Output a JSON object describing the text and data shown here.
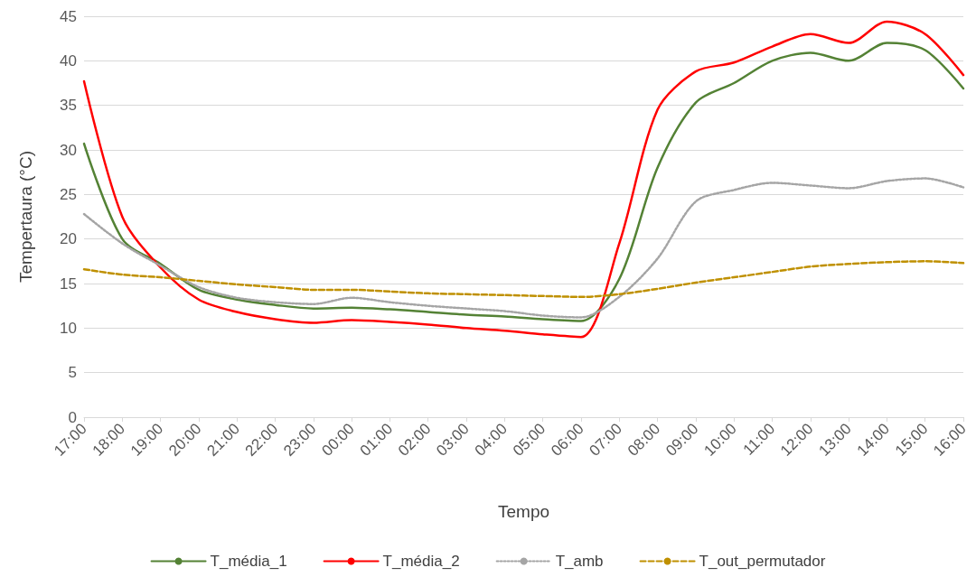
{
  "chart_data": {
    "type": "line",
    "xlabel": "Tempo",
    "ylabel": "Tempertaura (°C)",
    "categories": [
      "17:00",
      "18:00",
      "19:00",
      "20:00",
      "21:00",
      "22:00",
      "23:00",
      "00:00",
      "01:00",
      "02:00",
      "03:00",
      "04:00",
      "05:00",
      "06:00",
      "07:00",
      "08:00",
      "09:00",
      "10:00",
      "11:00",
      "12:00",
      "13:00",
      "14:00",
      "15:00",
      "16:00"
    ],
    "series": [
      {
        "name": "T_média_1",
        "color": "#548235",
        "line_style": "solid",
        "values": [
          30.7,
          20,
          17.2,
          14.3,
          13.2,
          12.6,
          12.2,
          12.3,
          12.1,
          11.8,
          11.5,
          11.3,
          11,
          10.8,
          15.5,
          28,
          35.3,
          37.5,
          40,
          40.9,
          40,
          42,
          41.2,
          36.9
        ]
      },
      {
        "name": "T_média_2",
        "color": "#ff0000",
        "line_style": "solid",
        "values": [
          37.7,
          22.5,
          16.8,
          13.2,
          11.8,
          11,
          10.6,
          10.9,
          10.7,
          10.4,
          10,
          9.7,
          9.3,
          9,
          19.5,
          34.5,
          38.8,
          39.8,
          41.6,
          43,
          42,
          44.4,
          43,
          38.4
        ]
      },
      {
        "name": "T_amb",
        "color": "#a5a5a5",
        "line_style": "dotted",
        "values": [
          22.8,
          19.5,
          17,
          14.6,
          13.4,
          12.9,
          12.7,
          13.4,
          12.9,
          12.5,
          12.2,
          11.9,
          11.4,
          11.2,
          13.5,
          17.8,
          24.2,
          25.5,
          26.3,
          26,
          25.7,
          26.5,
          26.8,
          25.8
        ]
      },
      {
        "name": "T_out_permutador",
        "color": "#bf9000",
        "line_style": "dashed",
        "values": [
          16.6,
          16,
          15.7,
          15.3,
          14.9,
          14.6,
          14.3,
          14.3,
          14.1,
          13.9,
          13.8,
          13.7,
          13.6,
          13.5,
          13.8,
          14.4,
          15.1,
          15.7,
          16.3,
          16.9,
          17.2,
          17.4,
          17.5,
          17.3
        ]
      }
    ],
    "ylim": [
      0,
      45
    ],
    "yticks": [
      0,
      5,
      10,
      15,
      20,
      25,
      30,
      35,
      40,
      45
    ],
    "grid": "y",
    "legend": "bottom",
    "marker": "none"
  }
}
